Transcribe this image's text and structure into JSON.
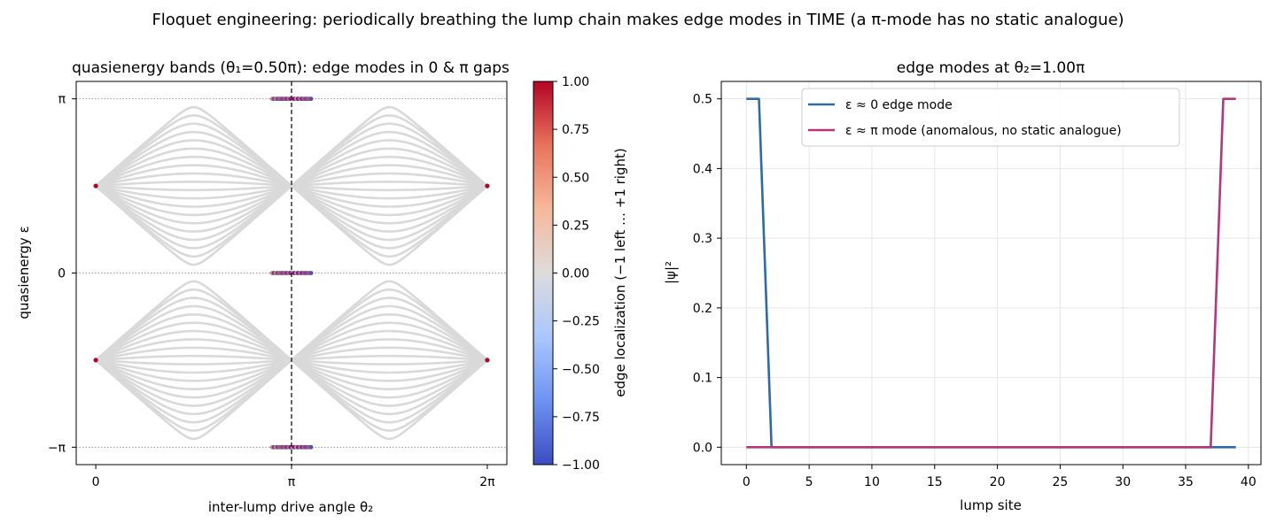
{
  "figure": {
    "suptitle": "Floquet engineering: periodically breathing the lump chain makes edge modes in TIME (a π-mode has no static analogue)"
  },
  "chart_data": [
    {
      "type": "scatter",
      "title": "quasienergy bands (θ₁=0.50π): edge modes in 0 & π gaps",
      "xlabel": "inter-lump drive angle  θ₂",
      "ylabel": "quasienergy  ε",
      "xlim_pi": [
        -0.1,
        2.1
      ],
      "ylim_pi": [
        -1.1,
        1.1
      ],
      "xticks": [
        {
          "value_pi": 0,
          "label": "0"
        },
        {
          "value_pi": 1,
          "label": "π"
        },
        {
          "value_pi": 2,
          "label": "2π"
        }
      ],
      "yticks": [
        {
          "value_pi": -1,
          "label": "−π"
        },
        {
          "value_pi": 0,
          "label": "0"
        },
        {
          "value_pi": 1,
          "label": "π"
        }
      ],
      "theta1_pi": 0.5,
      "n_bulk_bands": 20,
      "band_color": "#d9d9d9",
      "reference_lines": {
        "horizontal_dotted_at_pi": [
          -1,
          0,
          1
        ],
        "vertical_dashed_at_pi": 1
      },
      "edge_mode_points": [
        {
          "x_pi": 0.0,
          "y_pi": 0.5,
          "loc": 1.0
        },
        {
          "x_pi": 0.0,
          "y_pi": -0.5,
          "loc": 1.0
        },
        {
          "x_pi": 2.0,
          "y_pi": 0.5,
          "loc": 1.0
        },
        {
          "x_pi": 2.0,
          "y_pi": -0.5,
          "loc": 1.0
        }
      ],
      "edge_mode_gap_clusters": [
        {
          "y_pi": 1.0,
          "x_from_pi": 0.9,
          "x_to_pi": 1.1
        },
        {
          "y_pi": 0.0,
          "x_from_pi": 0.9,
          "x_to_pi": 1.1
        },
        {
          "y_pi": -1.0,
          "x_from_pi": 0.9,
          "x_to_pi": 1.1
        }
      ],
      "colorbar": {
        "label": "edge localization  (−1 left … +1 right)",
        "colormap": "coolwarm",
        "colors": [
          "#3b4cc0",
          "#6f92f3",
          "#aac7fd",
          "#dddcdc",
          "#f7b89c",
          "#e7745b",
          "#b40426"
        ],
        "range": [
          -1.0,
          1.0
        ],
        "ticks": [
          "1.00",
          "0.75",
          "0.50",
          "0.25",
          "0.00",
          "−0.25",
          "−0.50",
          "−0.75",
          "−1.00"
        ]
      }
    },
    {
      "type": "line",
      "title": "edge modes at θ₂=1.00π",
      "xlabel": "lump site",
      "ylabel": "|ψ|²",
      "xlim": [
        -2,
        41
      ],
      "ylim": [
        -0.025,
        0.525
      ],
      "xticks": [
        "0",
        "5",
        "10",
        "15",
        "20",
        "25",
        "30",
        "35",
        "40"
      ],
      "yticks": [
        "0.0",
        "0.1",
        "0.2",
        "0.3",
        "0.4",
        "0.5"
      ],
      "grid": true,
      "legend_position": "top-center",
      "series": [
        {
          "name": "ε ≈ 0 edge mode",
          "color": "#2c6aa8",
          "x": [
            0,
            1,
            2,
            3,
            4,
            5,
            6,
            7,
            8,
            9,
            10,
            11,
            12,
            13,
            14,
            15,
            16,
            17,
            18,
            19,
            20,
            21,
            22,
            23,
            24,
            25,
            26,
            27,
            28,
            29,
            30,
            31,
            32,
            33,
            34,
            35,
            36,
            37,
            38,
            39
          ],
          "y": [
            0.5,
            0.5,
            0,
            0,
            0,
            0,
            0,
            0,
            0,
            0,
            0,
            0,
            0,
            0,
            0,
            0,
            0,
            0,
            0,
            0,
            0,
            0,
            0,
            0,
            0,
            0,
            0,
            0,
            0,
            0,
            0,
            0,
            0,
            0,
            0,
            0,
            0,
            0,
            0,
            0
          ]
        },
        {
          "name": "ε ≈ π mode (anomalous, no static analogue)",
          "color": "#b5367a",
          "x": [
            0,
            1,
            2,
            3,
            4,
            5,
            6,
            7,
            8,
            9,
            10,
            11,
            12,
            13,
            14,
            15,
            16,
            17,
            18,
            19,
            20,
            21,
            22,
            23,
            24,
            25,
            26,
            27,
            28,
            29,
            30,
            31,
            32,
            33,
            34,
            35,
            36,
            37,
            38,
            39
          ],
          "y": [
            0,
            0,
            0,
            0,
            0,
            0,
            0,
            0,
            0,
            0,
            0,
            0,
            0,
            0,
            0,
            0,
            0,
            0,
            0,
            0,
            0,
            0,
            0,
            0,
            0,
            0,
            0,
            0,
            0,
            0,
            0,
            0,
            0,
            0,
            0,
            0,
            0,
            0,
            0.5,
            0.5
          ]
        }
      ]
    }
  ]
}
